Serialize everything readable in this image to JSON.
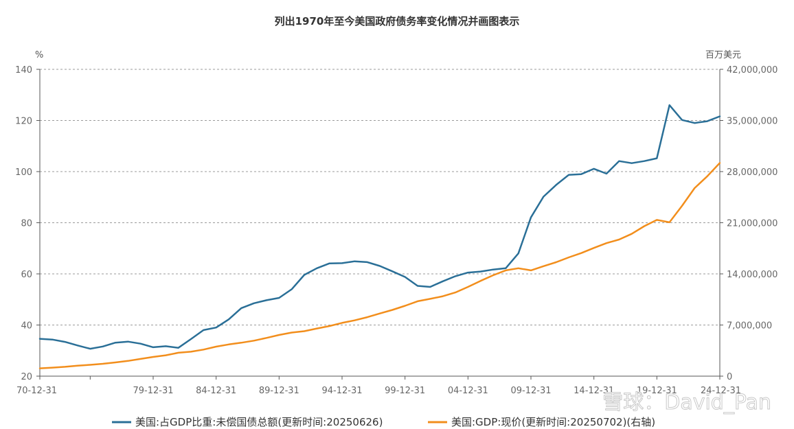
{
  "chart_data": {
    "type": "line",
    "title": "列出1970年至今美国政府债务率变化情况并画图表示",
    "left_unit": "%",
    "right_unit": "百万美元",
    "x_tick_labels": [
      "70-12-31",
      "79-12-31",
      "84-12-31",
      "89-12-31",
      "94-12-31",
      "99-12-31",
      "04-12-31",
      "09-12-31",
      "14-12-31",
      "19-12-31",
      "24-12-31"
    ],
    "x_tick_years": [
      1970,
      1979,
      1984,
      1989,
      1994,
      1999,
      2004,
      2009,
      2014,
      2019,
      2024
    ],
    "x_range": [
      1970,
      2024
    ],
    "y_left": {
      "min": 20,
      "max": 140,
      "ticks": [
        20,
        40,
        60,
        80,
        100,
        120,
        140
      ]
    },
    "y_right": {
      "min": 0,
      "max": 42000000,
      "ticks": [
        0,
        7000000,
        14000000,
        21000000,
        28000000,
        35000000,
        42000000
      ],
      "tick_labels": [
        "0",
        "7,000,000",
        "14,000,000",
        "21,000,000",
        "28,000,000",
        "35,000,000",
        "42,000,000"
      ]
    },
    "grid": "horizontal dashed",
    "legend_position": "bottom",
    "series": [
      {
        "name": "美国:占GDP比重:未偿国债总额(更新时间:20250626)",
        "axis": "left",
        "color": "#2a6f97",
        "x": [
          1970,
          1971,
          1972,
          1973,
          1974,
          1975,
          1976,
          1977,
          1978,
          1979,
          1980,
          1981,
          1982,
          1983,
          1984,
          1985,
          1986,
          1987,
          1988,
          1989,
          1990,
          1991,
          1992,
          1993,
          1994,
          1995,
          1996,
          1997,
          1998,
          1999,
          2000,
          2001,
          2002,
          2003,
          2004,
          2005,
          2006,
          2007,
          2008,
          2009,
          2010,
          2011,
          2012,
          2013,
          2014,
          2015,
          2016,
          2017,
          2018,
          2019,
          2020,
          2021,
          2022,
          2023,
          2024
        ],
        "values": [
          34.6,
          34.3,
          33.4,
          32.0,
          30.7,
          31.6,
          33.1,
          33.5,
          32.7,
          31.3,
          31.7,
          31.1,
          34.5,
          38.0,
          39.0,
          42.2,
          46.6,
          48.5,
          49.7,
          50.6,
          54.0,
          59.6,
          62.2,
          64.1,
          64.2,
          64.9,
          64.6,
          63.1,
          61.0,
          58.8,
          55.3,
          54.9,
          57.1,
          59.1,
          60.5,
          60.9,
          61.7,
          62.2,
          68.0,
          82.1,
          90.2,
          94.8,
          98.7,
          99.0,
          101.1,
          99.2,
          104.1,
          103.3,
          104.1,
          105.2,
          126.0,
          120.2,
          119.0,
          119.7,
          121.6
        ]
      },
      {
        "name": "美国:GDP:现价(更新时间:20250702)(右轴)",
        "axis": "right",
        "color": "#f28e1c",
        "x": [
          1970,
          1971,
          1972,
          1973,
          1974,
          1975,
          1976,
          1977,
          1978,
          1979,
          1980,
          1981,
          1982,
          1983,
          1984,
          1985,
          1986,
          1987,
          1988,
          1989,
          1990,
          1991,
          1992,
          1993,
          1994,
          1995,
          1996,
          1997,
          1998,
          1999,
          2000,
          2001,
          2002,
          2003,
          2004,
          2005,
          2006,
          2007,
          2008,
          2009,
          2010,
          2011,
          2012,
          2013,
          2014,
          2015,
          2016,
          2017,
          2018,
          2019,
          2020,
          2021,
          2022,
          2023,
          2024
        ],
        "values": [
          1073000,
          1165000,
          1280000,
          1435000,
          1549000,
          1689000,
          1877000,
          2086000,
          2357000,
          2632000,
          2857000,
          3207000,
          3343000,
          3634000,
          4037000,
          4339000,
          4580000,
          4855000,
          5236000,
          5642000,
          5963000,
          6158000,
          6520000,
          6859000,
          7287000,
          7640000,
          8073000,
          8578000,
          9063000,
          9631000,
          10251000,
          10582000,
          10936000,
          11458000,
          12214000,
          13037000,
          13815000,
          14475000,
          14769000,
          14478000,
          15049000,
          15600000,
          16254000,
          16843000,
          17551000,
          18206000,
          18695000,
          19477000,
          20533000,
          21381000,
          21060000,
          23315000,
          25744000,
          27361000,
          29185000
        ]
      }
    ]
  },
  "watermark": "雪球：David_Pan"
}
